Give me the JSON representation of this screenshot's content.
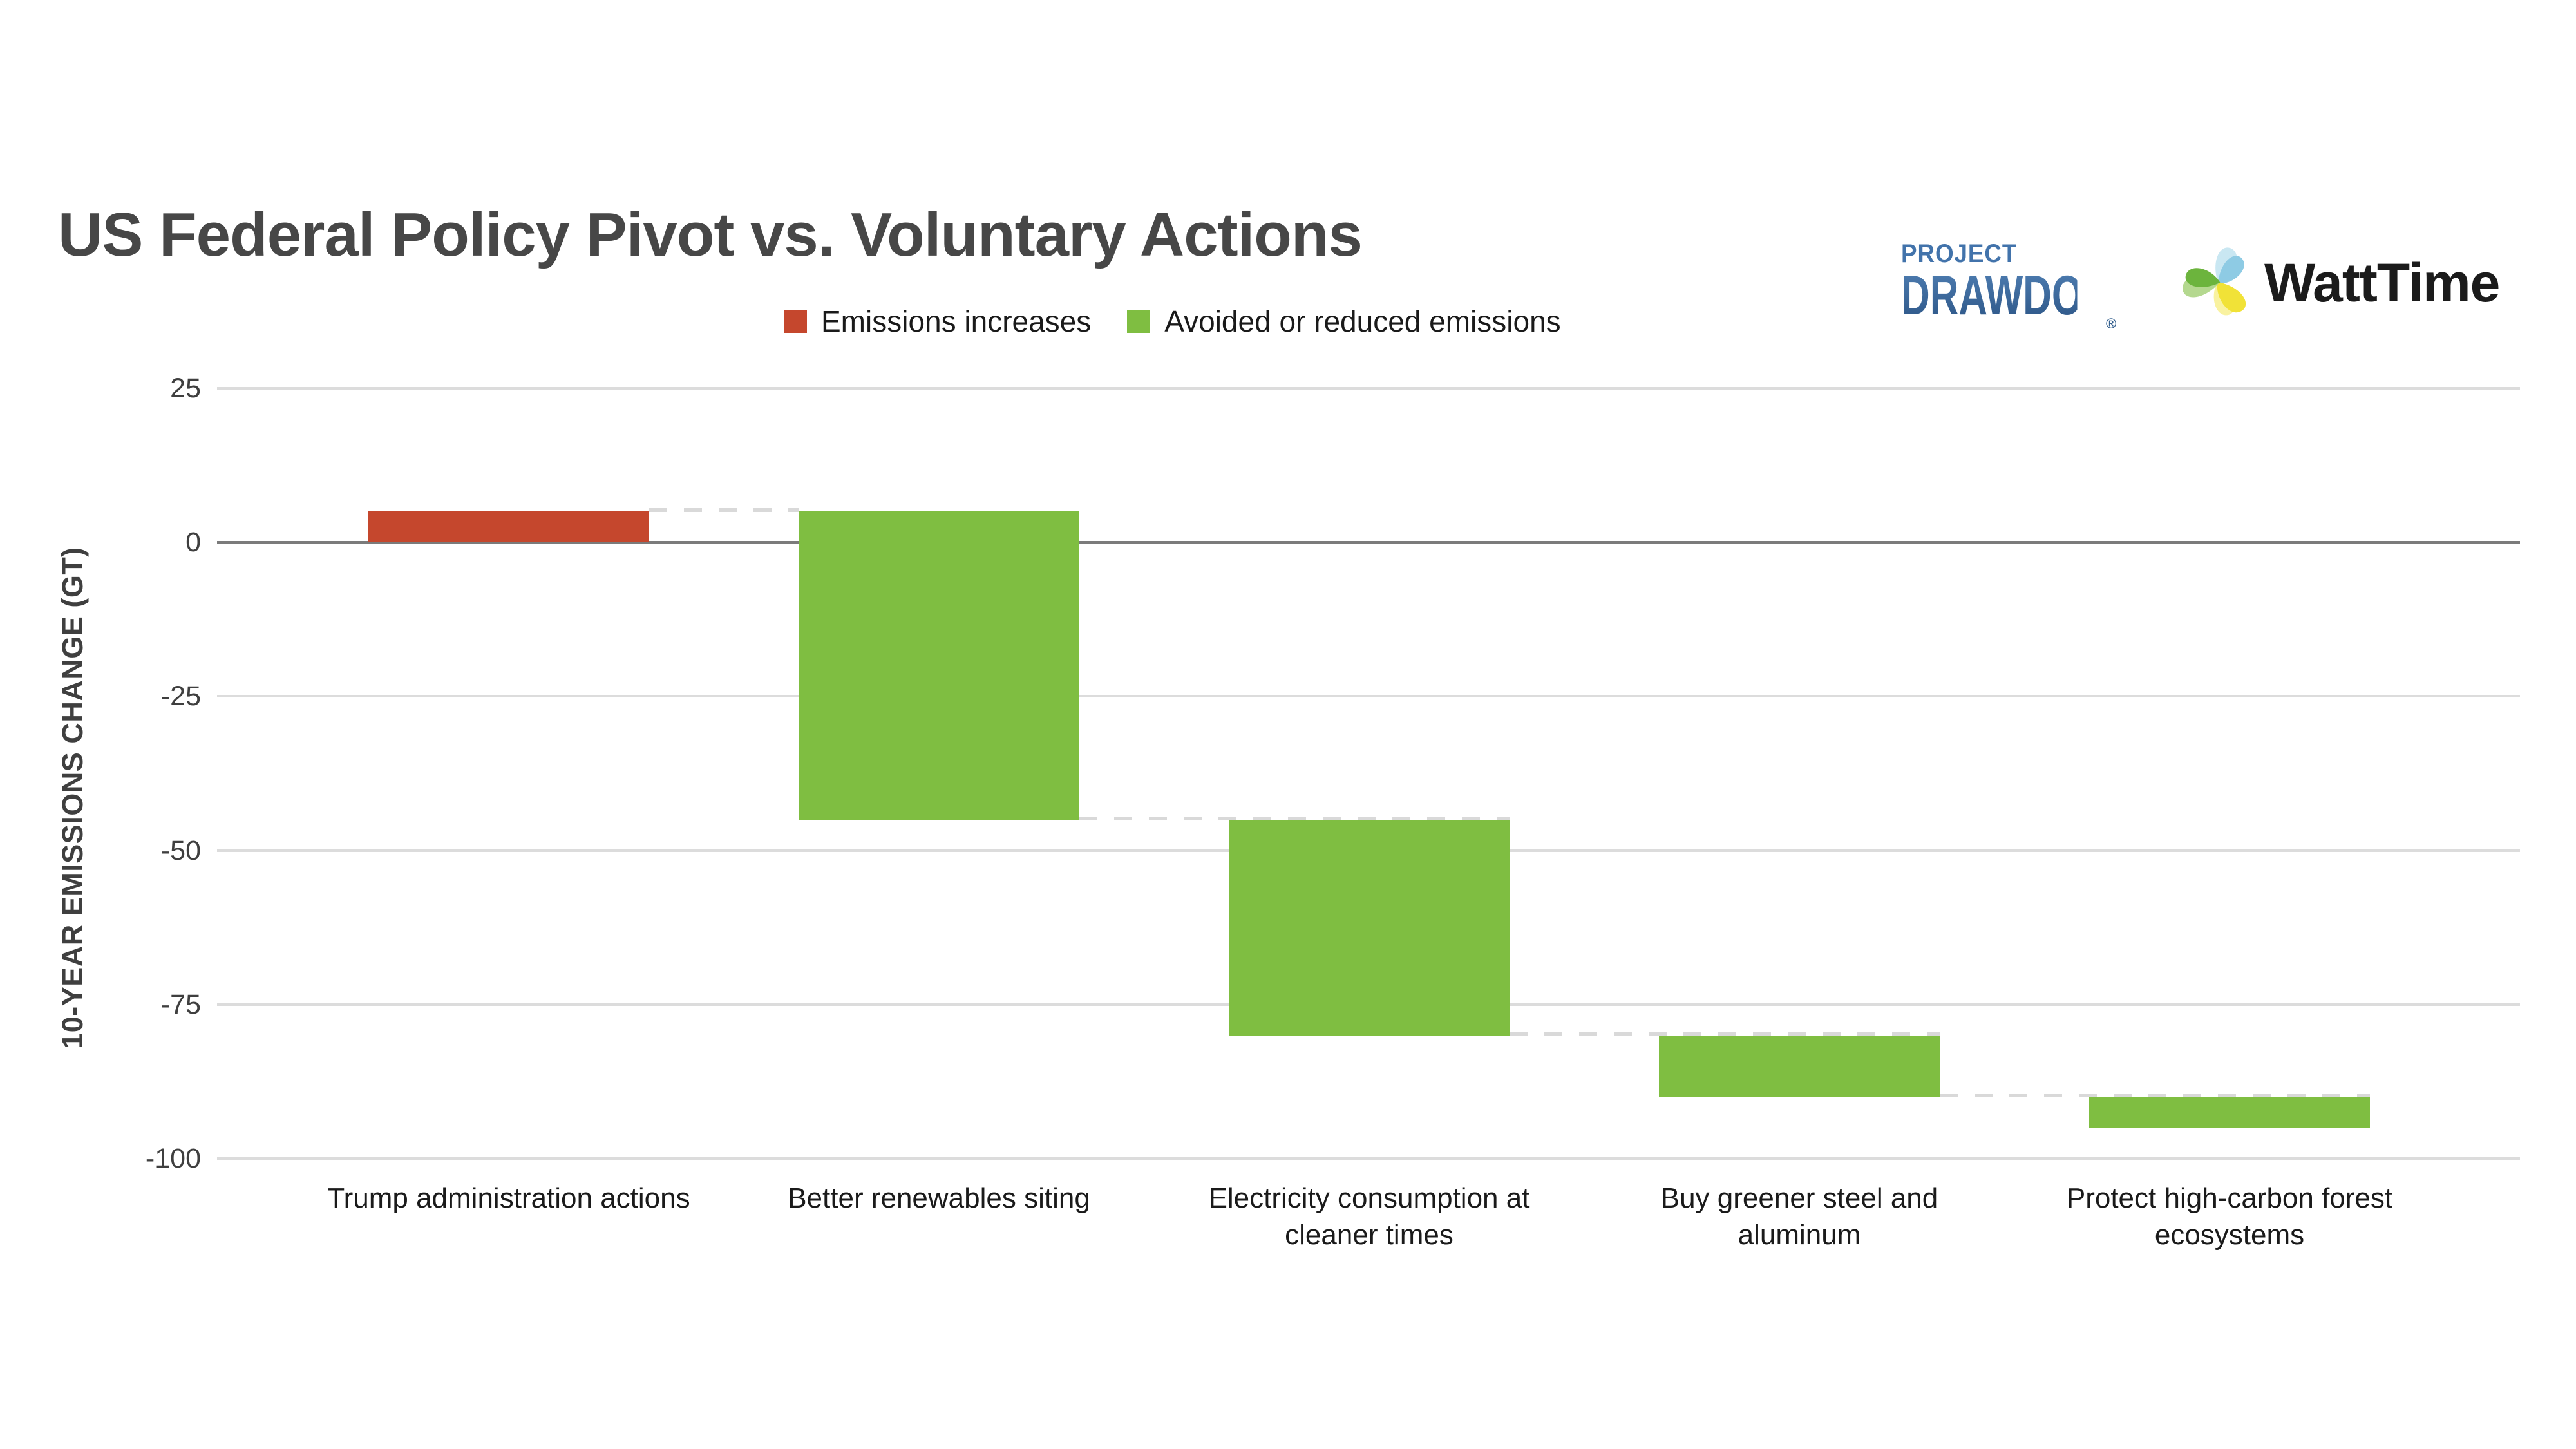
{
  "title": "US Federal Policy Pivot vs. Voluntary Actions",
  "legend": [
    {
      "label": "Emissions increases",
      "color": "#C5472D"
    },
    {
      "label": "Avoided or reduced emissions",
      "color": "#7FBE41"
    }
  ],
  "logos": {
    "project_drawdown": {
      "line1": "PROJECT",
      "line2": "DRAWDOWN",
      "reg": "®"
    },
    "watttime": {
      "text": "WattTime"
    }
  },
  "chart_data": {
    "type": "bar",
    "subtype": "waterfall",
    "title": "US Federal Policy Pivot vs. Voluntary Actions",
    "xlabel": "",
    "ylabel": "10-YEAR EMISSIONS CHANGE (GT)",
    "ylim": [
      -100,
      25
    ],
    "grid": "horizontal",
    "legend_position": "top-center",
    "colors": {
      "increase": "#C5472D",
      "decrease": "#7FBE41"
    },
    "yticks": [
      {
        "value": 25,
        "label": "25"
      },
      {
        "value": 0,
        "label": "0"
      },
      {
        "value": -25,
        "label": "-25"
      },
      {
        "value": -50,
        "label": "-50"
      },
      {
        "value": -75,
        "label": "-75"
      },
      {
        "value": -100,
        "label": "-100"
      }
    ],
    "categories": [
      {
        "lines": [
          "Trump administration actions"
        ]
      },
      {
        "lines": [
          "Better renewables siting"
        ]
      },
      {
        "lines": [
          "Electricity consumption at",
          "cleaner times"
        ]
      },
      {
        "lines": [
          "Buy greener steel and",
          "aluminum"
        ]
      },
      {
        "lines": [
          "Protect high-carbon forest",
          "ecosystems"
        ]
      }
    ],
    "bars": [
      {
        "label": "Trump administration actions",
        "change": 5,
        "start": 0,
        "end": 5,
        "kind": "increase"
      },
      {
        "label": "Better renewables siting",
        "change": -50,
        "start": 5,
        "end": -45,
        "kind": "decrease"
      },
      {
        "label": "Electricity consumption at cleaner times",
        "change": -35,
        "start": -45,
        "end": -80,
        "kind": "decrease"
      },
      {
        "label": "Buy greener steel and aluminum",
        "change": -10,
        "start": -80,
        "end": -90,
        "kind": "decrease"
      },
      {
        "label": "Protect high-carbon forest ecosystems",
        "change": -5,
        "start": -90,
        "end": -95,
        "kind": "decrease"
      }
    ]
  }
}
